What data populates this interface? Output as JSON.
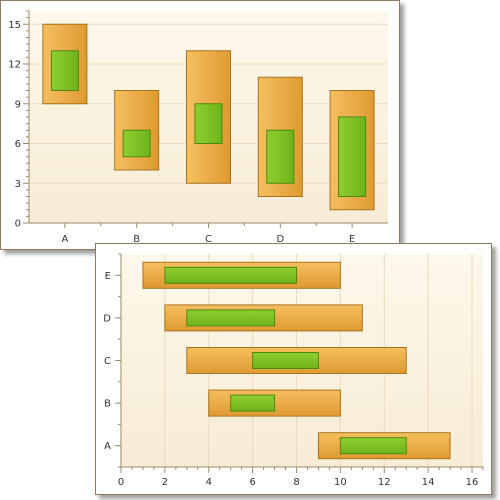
{
  "colors": {
    "plot_bg_top": "#fdf8ec",
    "plot_bg_bottom": "#f7ecd5",
    "grid": "#eadbbd",
    "axis": "#9e8a66",
    "outer_fill_light": "#f5bf5e",
    "outer_fill_dark": "#df9a32",
    "outer_stroke": "#a8731f",
    "inner_fill_light": "#8fce2f",
    "inner_fill_dark": "#6fb21a",
    "inner_stroke": "#4d8a12"
  },
  "chart_data": [
    {
      "type": "bar",
      "subtype": "vertical-range-bar",
      "categories": [
        "A",
        "B",
        "C",
        "D",
        "E"
      ],
      "series": [
        {
          "values": [
            [
              9,
              15
            ],
            [
              4,
              10
            ],
            [
              3,
              13
            ],
            [
              2,
              11
            ],
            [
              1,
              10
            ]
          ]
        },
        {
          "values": [
            [
              10,
              13
            ],
            [
              5,
              7
            ],
            [
              6,
              9
            ],
            [
              3,
              7
            ],
            [
              2,
              8
            ]
          ]
        }
      ],
      "ylim": [
        0,
        16
      ],
      "yticks": [
        "0",
        "3",
        "6",
        "9",
        "12",
        "15"
      ],
      "ytick_values": [
        0,
        3,
        6,
        9,
        12,
        15
      ],
      "grid": true
    },
    {
      "type": "bar",
      "subtype": "horizontal-range-bar",
      "categories": [
        "A",
        "B",
        "C",
        "D",
        "E"
      ],
      "series": [
        {
          "values": [
            [
              9,
              15
            ],
            [
              4,
              10
            ],
            [
              3,
              13
            ],
            [
              2,
              11
            ],
            [
              1,
              10
            ]
          ]
        },
        {
          "values": [
            [
              10,
              13
            ],
            [
              5,
              7
            ],
            [
              6,
              9
            ],
            [
              3,
              7
            ],
            [
              2,
              8
            ]
          ]
        }
      ],
      "xlim": [
        0,
        16.5
      ],
      "xticks": [
        "0",
        "2",
        "4",
        "6",
        "8",
        "10",
        "12",
        "14",
        "16"
      ],
      "xtick_values": [
        0,
        2,
        4,
        6,
        8,
        10,
        12,
        14,
        16
      ],
      "grid": true
    }
  ]
}
